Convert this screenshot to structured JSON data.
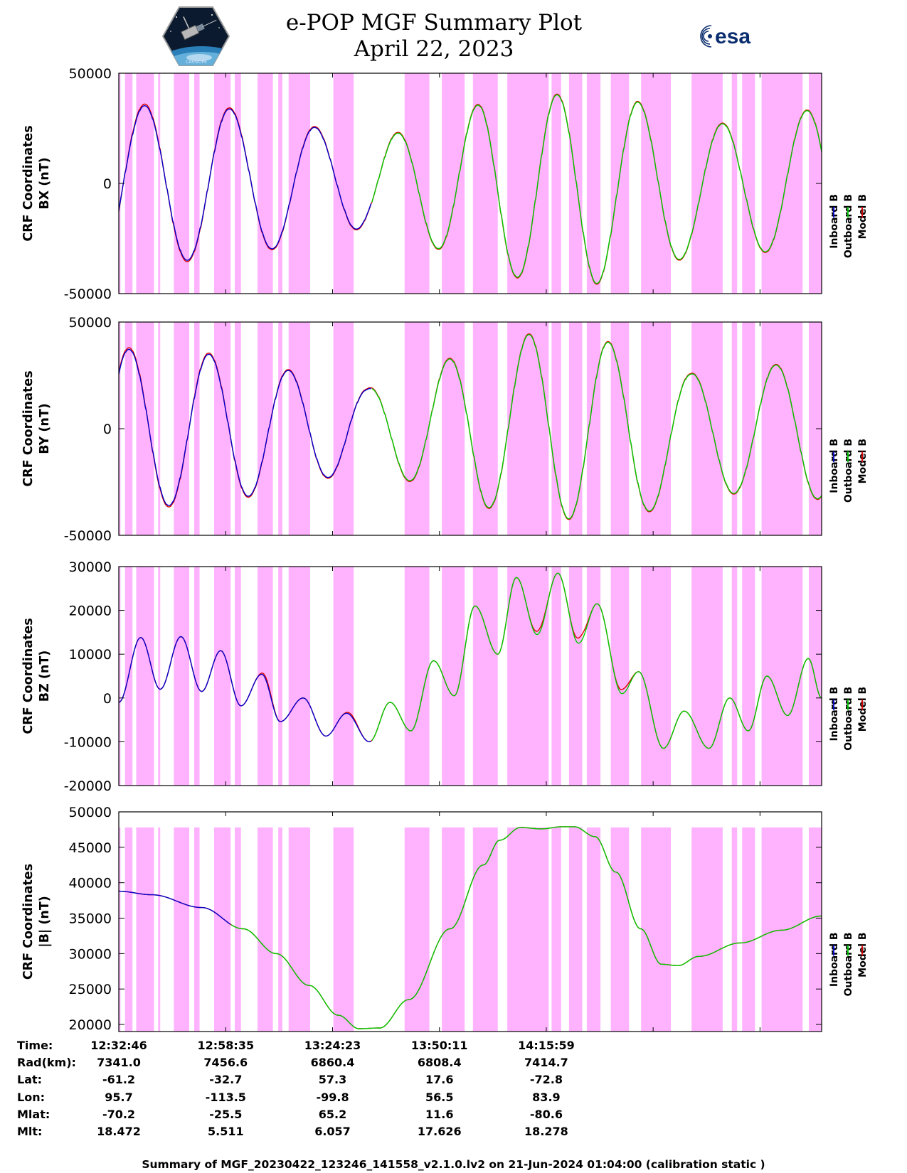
{
  "title": {
    "line1": "e-POP MGF Summary Plot",
    "line2": "April 22, 2023"
  },
  "logos": {
    "mission": "CASSIOPE",
    "agency": "esa"
  },
  "colors": {
    "inboard": "#0000cc",
    "outboard": "#00cc00",
    "model": "#e00000",
    "shading": "#ffb3ff",
    "frame": "#000000"
  },
  "chart_data": [
    {
      "type": "line",
      "panel": "BX",
      "ylabel_line1": "CRF Coordinates",
      "ylabel_line2": "BX (nT)",
      "ylim": [
        -50000,
        50000
      ],
      "yticks": [
        50000,
        0,
        -50000
      ],
      "ytick_labels": [
        "50000",
        "0",
        "-50000"
      ],
      "legend": [
        "Inboard B",
        "Outboard B",
        "Model B"
      ],
      "shading_band": [
        -50000,
        50000
      ],
      "osc": {
        "t0": 0,
        "p0": 20.6,
        "p1": 19.3,
        "pLate": 20.3,
        "tTrans": 55,
        "tLate": 118,
        "phase": -0.35,
        "tMax": 169.7,
        "tSwitch": 61,
        "amp": [
          [
            0,
            35500
          ],
          [
            25,
            34500
          ],
          [
            45,
            26500
          ],
          [
            60,
            19500
          ],
          [
            75,
            27000
          ],
          [
            88,
            38000
          ],
          [
            100,
            42000
          ],
          [
            115,
            43000
          ],
          [
            125,
            40000
          ],
          [
            138,
            30000
          ],
          [
            152,
            28000
          ],
          [
            160,
            32000
          ],
          [
            169.7,
            34000
          ]
        ],
        "off": [
          [
            0,
            0
          ],
          [
            40,
            0
          ],
          [
            60,
            0
          ],
          [
            100,
            -2000
          ],
          [
            130,
            -3000
          ],
          [
            169.7,
            0
          ]
        ],
        "model_dev": [
          [
            0,
            800
          ],
          [
            40,
            400
          ],
          [
            169.7,
            300
          ]
        ]
      }
    },
    {
      "type": "line",
      "panel": "BY",
      "ylabel_line1": "CRF Coordinates",
      "ylabel_line2": "BY (nT)",
      "ylim": [
        -50000,
        50000
      ],
      "yticks": [
        50000,
        0,
        -50000
      ],
      "ytick_labels": [
        "50000",
        "0",
        "-50000"
      ],
      "legend": [
        "Inboard B",
        "Outboard B",
        "Model B"
      ],
      "shading_band": [
        -50000,
        50000
      ],
      "osc": {
        "t0": 0,
        "p0": 19.3,
        "p1": 19.3,
        "pLate": 20.2,
        "tTrans": 60,
        "tLate": 120,
        "phase": 0.75,
        "tMax": 169.7,
        "tSwitch": 61,
        "amp": [
          [
            0,
            37500
          ],
          [
            25,
            34500
          ],
          [
            45,
            25500
          ],
          [
            60,
            18500
          ],
          [
            75,
            28000
          ],
          [
            88,
            38000
          ],
          [
            100,
            42500
          ],
          [
            115,
            43000
          ],
          [
            125,
            38500
          ],
          [
            138,
            28000
          ],
          [
            152,
            29000
          ],
          [
            160,
            31000
          ],
          [
            169.7,
            33000
          ]
        ],
        "off": [
          [
            0,
            0
          ],
          [
            40,
            0
          ],
          [
            60,
            0
          ],
          [
            100,
            2000
          ],
          [
            130,
            -3000
          ],
          [
            169.7,
            0
          ]
        ],
        "model_dev": [
          [
            0,
            800
          ],
          [
            40,
            400
          ],
          [
            169.7,
            300
          ]
        ]
      }
    },
    {
      "type": "line",
      "panel": "BZ",
      "ylabel_line1": "CRF Coordinates",
      "ylabel_line2": "BZ (nT)",
      "ylim": [
        -20000,
        30000
      ],
      "yticks": [
        30000,
        20000,
        10000,
        0,
        -10000,
        -20000
      ],
      "ytick_labels": [
        "30000",
        "20000",
        "10000",
        "0",
        "-10000",
        "-20000"
      ],
      "legend": [
        "Inboard B",
        "Outboard B",
        "Model B"
      ],
      "shading_band": [
        -20000,
        30000
      ],
      "points": [
        [
          0,
          -1000
        ],
        [
          5.3,
          13800
        ],
        [
          10,
          2000
        ],
        [
          15,
          14000
        ],
        [
          20,
          1500
        ],
        [
          24.6,
          10800
        ],
        [
          29.5,
          -1800
        ],
        [
          34.5,
          5400
        ],
        [
          39,
          -5400
        ],
        [
          44.5,
          0
        ],
        [
          50,
          -8700
        ],
        [
          55,
          -3500
        ],
        [
          60.5,
          -10000
        ],
        [
          65.5,
          -1000
        ],
        [
          70.5,
          -7500
        ],
        [
          76,
          8500
        ],
        [
          81,
          500
        ],
        [
          86,
          21000
        ],
        [
          91.5,
          10000
        ],
        [
          96,
          27500
        ],
        [
          101,
          14500
        ],
        [
          106,
          28500
        ],
        [
          111,
          12500
        ],
        [
          115.5,
          21500
        ],
        [
          121.5,
          1000
        ],
        [
          125.5,
          6000
        ],
        [
          131.5,
          -11500
        ],
        [
          136.5,
          -3000
        ],
        [
          142.5,
          -11500
        ],
        [
          147.5,
          0
        ],
        [
          152,
          -7500
        ],
        [
          156.5,
          5000
        ],
        [
          161.5,
          -4000
        ],
        [
          166.5,
          9000
        ],
        [
          169.7,
          0
        ]
      ],
      "model_deltas": [
        [
          36,
          600
        ],
        [
          56.5,
          400
        ],
        [
          101.5,
          800
        ],
        [
          111.5,
          1300
        ],
        [
          122,
          1000
        ]
      ],
      "tSwitch": 61
    },
    {
      "type": "line",
      "panel": "|B|",
      "ylabel_line1": "CRF Coordinates",
      "ylabel_line2": "|B| (nT)",
      "ylim": [
        19000,
        50000
      ],
      "yticks": [
        50000,
        45000,
        40000,
        35000,
        30000,
        25000,
        20000
      ],
      "ytick_labels": [
        "50000",
        "45000",
        "40000",
        "35000",
        "30000",
        "25000",
        "20000"
      ],
      "legend": [
        "Inboard B",
        "Outboard B",
        "Model B"
      ],
      "shading_band": [
        19000,
        47800
      ],
      "points": [
        [
          0,
          38800
        ],
        [
          8,
          38300
        ],
        [
          20,
          36500
        ],
        [
          30,
          33500
        ],
        [
          38,
          30000
        ],
        [
          46,
          25500
        ],
        [
          53,
          21300
        ],
        [
          58,
          19400
        ],
        [
          63,
          19500
        ],
        [
          70,
          23500
        ],
        [
          80,
          33500
        ],
        [
          88,
          42500
        ],
        [
          92,
          46000
        ],
        [
          97,
          47800
        ],
        [
          102,
          47600
        ],
        [
          107,
          47900
        ],
        [
          110,
          47900
        ],
        [
          115,
          46500
        ],
        [
          120,
          41500
        ],
        [
          126,
          33500
        ],
        [
          131,
          28500
        ],
        [
          135,
          28300
        ],
        [
          140,
          29600
        ],
        [
          150,
          31500
        ],
        [
          160,
          33300
        ],
        [
          169.7,
          35300
        ]
      ],
      "tSwitch": 27
    }
  ],
  "time_axis": {
    "tMax_minutes": 169.7,
    "tick_minutes": [
      0,
      25.817,
      51.617,
      77.417,
      103.217
    ],
    "minor_ticks": [
      0,
      25.817,
      51.617,
      77.417,
      103.217,
      129.017,
      154.817
    ],
    "shaded_intervals_minutes": [
      [
        0,
        0.4
      ],
      [
        1.5,
        3.3
      ],
      [
        4.2,
        8.5
      ],
      [
        9.5,
        10.0
      ],
      [
        13.3,
        17.0
      ],
      [
        18.2,
        19.5
      ],
      [
        23.0,
        27.0
      ],
      [
        28.0,
        29.5
      ],
      [
        33.5,
        37.2
      ],
      [
        38.5,
        39.5
      ],
      [
        41.0,
        46.2
      ],
      [
        51.8,
        56.7
      ],
      [
        69.0,
        75.0
      ],
      [
        78.0,
        83.5
      ],
      [
        85.5,
        91.5
      ],
      [
        93.8,
        103.8
      ],
      [
        104.5,
        106.8
      ],
      [
        108.7,
        111.9
      ],
      [
        113.0,
        116.3
      ],
      [
        118.8,
        123.2
      ],
      [
        126.1,
        133.3
      ],
      [
        138.3,
        145.8
      ],
      [
        148.0,
        149.3
      ],
      [
        150.5,
        153.6
      ],
      [
        155.2,
        165.1
      ],
      [
        166.6,
        169.7
      ]
    ]
  },
  "info_table": {
    "labels": [
      "Time:",
      "Rad(km):",
      "Lat:",
      "Lon:",
      "Mlat:",
      "Mlt:"
    ],
    "columns": [
      [
        "12:32:46",
        "7341.0",
        "-61.2",
        "95.7",
        "-70.2",
        "18.472"
      ],
      [
        "12:58:35",
        "7456.6",
        "-32.7",
        "-113.5",
        "-25.5",
        "5.511"
      ],
      [
        "13:24:23",
        "6860.4",
        "57.3",
        "-99.8",
        "65.2",
        "6.057"
      ],
      [
        "13:50:11",
        "6808.4",
        "17.6",
        "56.5",
        "11.6",
        "17.626"
      ],
      [
        "14:15:59",
        "7414.7",
        "-72.8",
        "83.9",
        "-80.6",
        "18.278"
      ]
    ]
  },
  "footer": "Summary of MGF_20230422_123246_141558_v2.1.0.lv2 on 21-Jun-2024 01:04:00 (calibration static )"
}
